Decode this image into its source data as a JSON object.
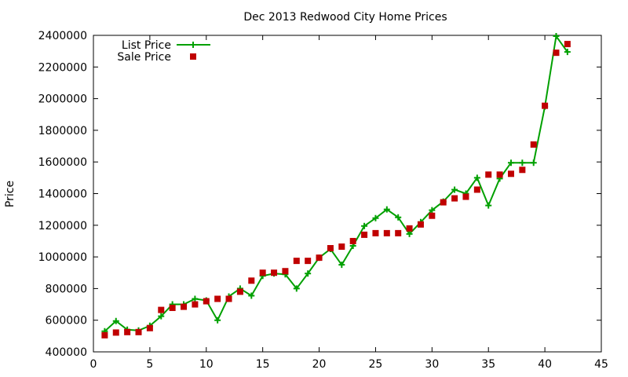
{
  "chart_data": {
    "type": "line",
    "title": "Dec 2013 Redwood City Home Prices",
    "xlabel": "",
    "ylabel": "Price",
    "xlim": [
      0,
      45
    ],
    "ylim": [
      400000,
      2400000
    ],
    "xticks": [
      0,
      5,
      10,
      15,
      20,
      25,
      30,
      35,
      40,
      45
    ],
    "yticks": [
      400000,
      600000,
      800000,
      1000000,
      1200000,
      1400000,
      1600000,
      1800000,
      2000000,
      2200000,
      2400000
    ],
    "grid": false,
    "legend_position": "top-left",
    "series": [
      {
        "name": "List Price",
        "style": "line+plus",
        "color": "#00a000",
        "x": [
          1,
          2,
          3,
          4,
          5,
          6,
          7,
          8,
          9,
          10,
          11,
          12,
          13,
          14,
          15,
          16,
          17,
          18,
          19,
          20,
          21,
          22,
          23,
          24,
          25,
          26,
          27,
          28,
          29,
          30,
          31,
          32,
          33,
          34,
          35,
          36,
          37,
          38,
          39,
          40,
          41,
          42
        ],
        "y": [
          530000,
          595000,
          540000,
          535000,
          565000,
          625000,
          700000,
          700000,
          735000,
          725000,
          600000,
          750000,
          800000,
          755000,
          880000,
          895000,
          890000,
          800000,
          895000,
          995000,
          1050000,
          950000,
          1070000,
          1195000,
          1245000,
          1300000,
          1250000,
          1145000,
          1220000,
          1295000,
          1350000,
          1425000,
          1400000,
          1500000,
          1325000,
          1495000,
          1595000,
          1595000,
          1595000,
          1950000,
          2395000,
          2295000
        ]
      },
      {
        "name": "Sale Price",
        "style": "square",
        "color": "#c00000",
        "x": [
          1,
          2,
          3,
          4,
          5,
          6,
          7,
          8,
          9,
          10,
          11,
          12,
          13,
          14,
          15,
          16,
          17,
          18,
          19,
          20,
          21,
          22,
          23,
          24,
          25,
          26,
          27,
          28,
          29,
          30,
          31,
          32,
          33,
          34,
          35,
          36,
          37,
          38,
          39,
          40,
          41,
          42
        ],
        "y": [
          505000,
          522000,
          525000,
          525000,
          550000,
          665000,
          678000,
          685000,
          700000,
          720000,
          735000,
          735000,
          780000,
          850000,
          900000,
          900000,
          910000,
          975000,
          975000,
          995000,
          1055000,
          1065000,
          1100000,
          1140000,
          1150000,
          1150000,
          1150000,
          1180000,
          1205000,
          1260000,
          1345000,
          1370000,
          1380000,
          1425000,
          1520000,
          1520000,
          1525000,
          1550000,
          1710000,
          1955000,
          2290000,
          2345000
        ]
      }
    ]
  }
}
